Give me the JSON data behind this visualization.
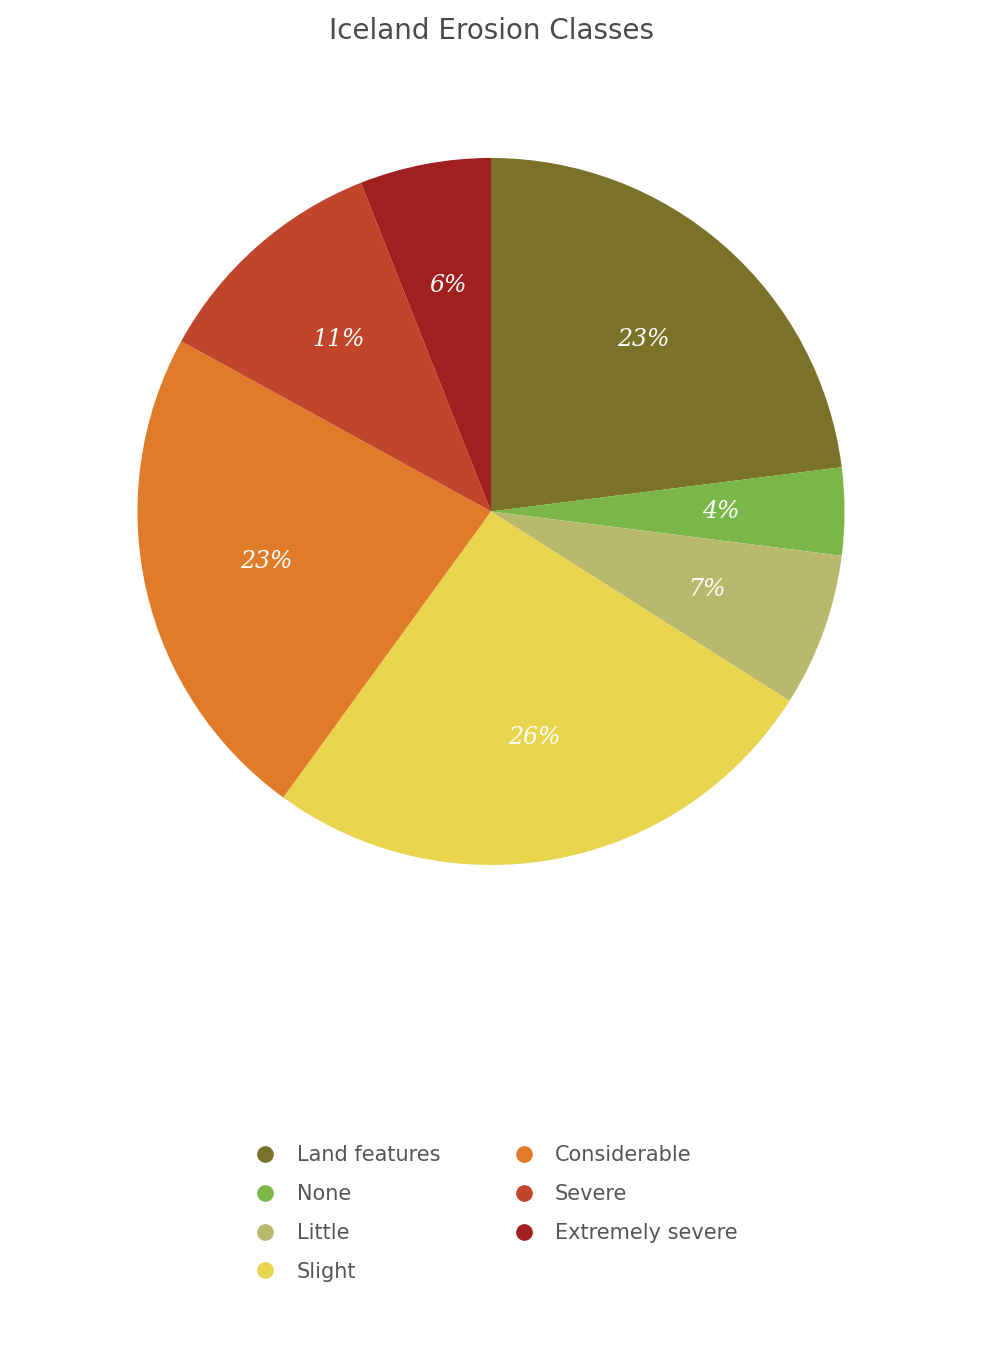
{
  "title": "Iceland Erosion Classes",
  "title_fontsize": 20,
  "title_color": "#4a4a4a",
  "slices": [
    {
      "label": "Land features",
      "pct": 23,
      "color": "#7a7228"
    },
    {
      "label": "None",
      "pct": 4,
      "color": "#7ab648"
    },
    {
      "label": "Little",
      "pct": 7,
      "color": "#b9b96e"
    },
    {
      "label": "Slight",
      "pct": 26,
      "color": "#e8d44d"
    },
    {
      "label": "Considerable",
      "pct": 23,
      "color": "#e07b2a"
    },
    {
      "label": "Severe",
      "pct": 11,
      "color": "#c0452a"
    },
    {
      "label": "Extremely severe",
      "pct": 6,
      "color": "#a02020"
    }
  ],
  "label_color": "#ffffff",
  "label_fontsize": 17,
  "legend_fontsize": 15,
  "legend_text_color": "#555555",
  "background_color": "#ffffff",
  "startangle": 90,
  "legend_order_left": [
    "Land features",
    "Little",
    "Considerable",
    "Extremely severe"
  ],
  "legend_order_right": [
    "None",
    "Slight",
    "Severe"
  ]
}
